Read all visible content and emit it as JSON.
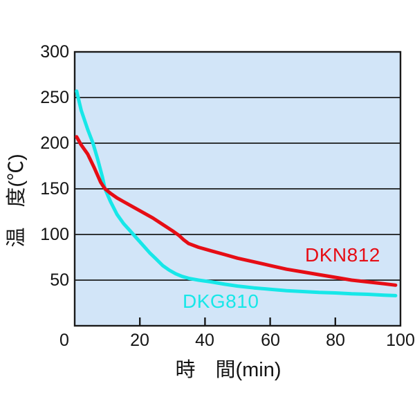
{
  "chart_data": {
    "type": "line",
    "title": "",
    "xlabel": "時　間(min)",
    "ylabel": "温　度(℃)",
    "xlim": [
      0,
      100
    ],
    "ylim": [
      0,
      300
    ],
    "x_ticks": [
      0,
      20,
      40,
      60,
      80,
      100
    ],
    "y_ticks": [
      300,
      250,
      200,
      150,
      100,
      50
    ],
    "grid": "horizontal-only",
    "legend_position": "inline-labels",
    "colors": {
      "plot_background": "#d2e5f8",
      "grid_line": "#1a1a1a",
      "border": "#1a1a1a",
      "tick_text": "#141414"
    },
    "series": [
      {
        "name": "DKG810",
        "color": "#17e7e8",
        "points": [
          [
            0.6,
            257
          ],
          [
            2,
            236
          ],
          [
            4,
            215
          ],
          [
            5.6,
            200
          ],
          [
            7,
            183
          ],
          [
            8.5,
            163
          ],
          [
            9.3,
            150
          ],
          [
            11,
            136
          ],
          [
            13,
            122
          ],
          [
            15,
            112
          ],
          [
            17,
            104
          ],
          [
            19,
            96
          ],
          [
            21,
            88
          ],
          [
            23,
            80
          ],
          [
            25,
            73
          ],
          [
            27,
            66
          ],
          [
            29,
            61
          ],
          [
            31,
            57
          ],
          [
            33,
            54
          ],
          [
            35,
            52
          ],
          [
            38,
            50
          ],
          [
            42,
            48
          ],
          [
            46,
            45.5
          ],
          [
            50,
            43.5
          ],
          [
            55,
            41.5
          ],
          [
            60,
            40
          ],
          [
            65,
            38.5
          ],
          [
            70,
            37.5
          ],
          [
            75,
            36.5
          ],
          [
            80,
            36
          ],
          [
            85,
            35
          ],
          [
            90,
            34.5
          ],
          [
            95,
            33.5
          ],
          [
            98.5,
            33
          ]
        ]
      },
      {
        "name": "DKN812",
        "color": "#e60d15",
        "points": [
          [
            0.6,
            207
          ],
          [
            2,
            198
          ],
          [
            4,
            188
          ],
          [
            6,
            173
          ],
          [
            8,
            157
          ],
          [
            9.3,
            150
          ],
          [
            11,
            145
          ],
          [
            13,
            140
          ],
          [
            15,
            136
          ],
          [
            18,
            130
          ],
          [
            21,
            124
          ],
          [
            24,
            118
          ],
          [
            27,
            111
          ],
          [
            30,
            104
          ],
          [
            32,
            99
          ],
          [
            33.5,
            94
          ],
          [
            35,
            90
          ],
          [
            38,
            86
          ],
          [
            42,
            82
          ],
          [
            46,
            78
          ],
          [
            50,
            74
          ],
          [
            55,
            70
          ],
          [
            60,
            66
          ],
          [
            65,
            62
          ],
          [
            70,
            59
          ],
          [
            75,
            56
          ],
          [
            80,
            53
          ],
          [
            85,
            50
          ],
          [
            90,
            48
          ],
          [
            95,
            46
          ],
          [
            98.5,
            44.5
          ]
        ]
      }
    ]
  }
}
